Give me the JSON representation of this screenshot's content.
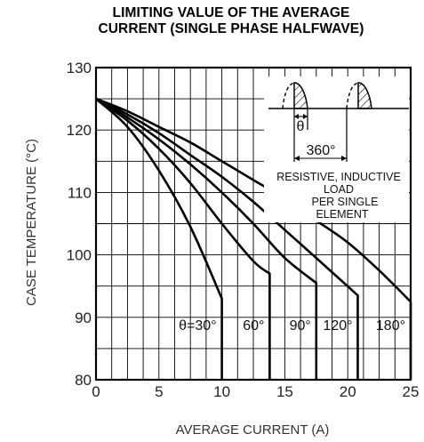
{
  "chart_data": {
    "type": "line",
    "title": "LIMITING VALUE OF THE AVERAGE",
    "subtitle": "CURRENT (SINGLE PHASE HALFWAVE)",
    "xlabel": "AVERAGE CURRENT (A)",
    "ylabel": "CASE TEMPERATURE (°C)",
    "xlim": [
      0,
      25
    ],
    "ylim": [
      80,
      130
    ],
    "xticks": [
      "0",
      "5",
      "10",
      "15",
      "20",
      "25"
    ],
    "yticks": [
      "80",
      "90",
      "100",
      "110",
      "120",
      "130"
    ],
    "grid": true,
    "series": [
      {
        "name": "θ=30°",
        "x": [
          0,
          2.5,
          5,
          7.5,
          10,
          10
        ],
        "y": [
          125,
          120.5,
          113.5,
          104.5,
          93,
          80
        ]
      },
      {
        "name": "60°",
        "x": [
          0,
          2.5,
          5,
          7.5,
          10,
          12.5,
          13.8,
          13.8
        ],
        "y": [
          125,
          121.5,
          117,
          111.5,
          105,
          99,
          97,
          80
        ]
      },
      {
        "name": "90°",
        "x": [
          0,
          2.5,
          5,
          7.5,
          10,
          12.5,
          15,
          17.5,
          17.5
        ],
        "y": [
          125,
          122,
          118.5,
          114.5,
          110,
          105,
          99.5,
          95.5,
          80
        ]
      },
      {
        "name": "120°",
        "x": [
          0,
          2.5,
          5,
          7.5,
          10,
          12.5,
          15,
          17.5,
          20.8,
          20.8
        ],
        "y": [
          125,
          122.5,
          119.5,
          116,
          112.5,
          108.5,
          104,
          99.5,
          93.5,
          80
        ]
      },
      {
        "name": "180°",
        "x": [
          0,
          2.5,
          5,
          7.5,
          10,
          12.5,
          15,
          17.5,
          20,
          22.5,
          25,
          25
        ],
        "y": [
          125,
          123,
          120.5,
          118,
          115,
          112,
          109,
          105.5,
          102,
          97.5,
          92.5,
          80
        ]
      }
    ],
    "annotations": {
      "conduction_angle": "θ",
      "period": "360°",
      "note_lines": [
        "RESISTIVE, INDUCTIVE",
        "LOAD",
        "PER SINGLE",
        "ELEMENT"
      ]
    }
  },
  "colors": {
    "line": "#000000",
    "grid": "#000000",
    "text": "#222222"
  }
}
